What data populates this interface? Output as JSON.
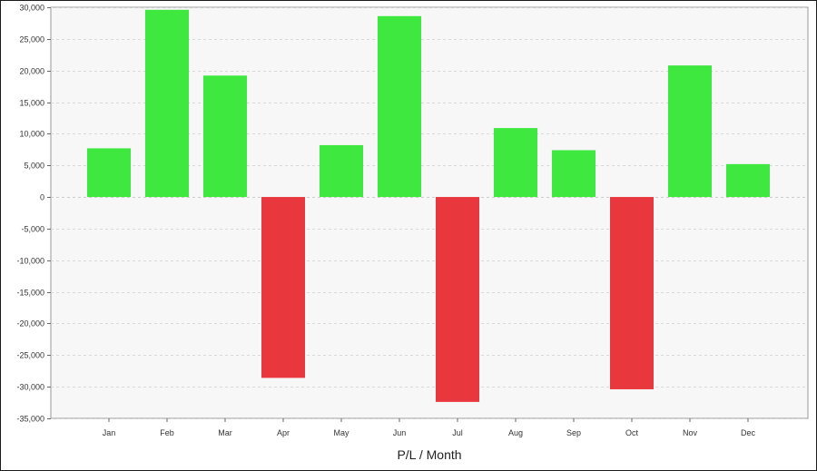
{
  "chart_data": {
    "type": "bar",
    "title": "",
    "xlabel": "P/L / Month",
    "ylabel": "",
    "categories": [
      "Jan",
      "Feb",
      "Mar",
      "Apr",
      "May",
      "Jun",
      "Jul",
      "Aug",
      "Sep",
      "Oct",
      "Nov",
      "Dec"
    ],
    "values": [
      7700,
      29600,
      19200,
      -28600,
      8200,
      28600,
      -32400,
      10900,
      7400,
      -30400,
      20800,
      5200
    ],
    "ylim": [
      -35000,
      30000
    ],
    "yticks": [
      30000,
      25000,
      20000,
      15000,
      10000,
      5000,
      0,
      -5000,
      -10000,
      -15000,
      -20000,
      -25000,
      -30000,
      -35000
    ],
    "ytick_labels": [
      "30,000",
      "25,000",
      "20,000",
      "15,000",
      "10,000",
      "5,000",
      "0",
      "-5,000",
      "-10,000",
      "-15,000",
      "-20,000",
      "-25,000",
      "-30,000",
      "-35,000"
    ],
    "grid": true,
    "legend": false,
    "colors": {
      "positive": "#3ee83e",
      "negative": "#e8383e",
      "grid": "#d8d8d8",
      "plot_background": "#f7f7f7",
      "plot_border": "#999999"
    }
  }
}
